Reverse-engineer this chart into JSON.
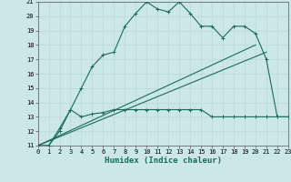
{
  "xlabel": "Humidex (Indice chaleur)",
  "background_color": "#cce8e6",
  "line_color": "#1a6b5a",
  "xlim": [
    0,
    23
  ],
  "ylim": [
    11,
    21
  ],
  "xticks": [
    0,
    1,
    2,
    3,
    4,
    5,
    6,
    7,
    8,
    9,
    10,
    11,
    12,
    13,
    14,
    15,
    16,
    17,
    18,
    19,
    20,
    21,
    22,
    23
  ],
  "yticks": [
    11,
    12,
    13,
    14,
    15,
    16,
    17,
    18,
    19,
    20,
    21
  ],
  "curve1_x": [
    0,
    1,
    2,
    3,
    4,
    5,
    6,
    7,
    8,
    9,
    10,
    11,
    12,
    13,
    14,
    15,
    16,
    17,
    18,
    19,
    20,
    21,
    22,
    23
  ],
  "curve1_y": [
    11,
    11,
    12,
    13.5,
    15,
    16.5,
    17.3,
    17.5,
    19.3,
    20.2,
    21.0,
    20.5,
    20.3,
    21.0,
    20.2,
    19.3,
    19.3,
    18.5,
    19.3,
    19.3,
    18.8,
    17.0,
    13.0,
    13.0
  ],
  "curve2_x": [
    0,
    1,
    2,
    3,
    4,
    5,
    6,
    7,
    8,
    9,
    10,
    11,
    12,
    13,
    14,
    15,
    16,
    17,
    18,
    19,
    20,
    21,
    22,
    23
  ],
  "curve2_y": [
    11,
    11,
    12.2,
    13.5,
    13.0,
    13.2,
    13.3,
    13.5,
    13.5,
    13.5,
    13.5,
    13.5,
    13.5,
    13.5,
    13.5,
    13.5,
    13.0,
    13.0,
    13.0,
    13.0,
    13.0,
    13.0,
    13.0,
    13.0
  ],
  "curve3_x": [
    0,
    20
  ],
  "curve3_y": [
    11,
    18.0
  ],
  "curve4_x": [
    0,
    21
  ],
  "curve4_y": [
    11,
    17.5
  ],
  "title_fontsize": 6.5,
  "axis_fontsize": 6.5,
  "tick_fontsize": 5.0
}
